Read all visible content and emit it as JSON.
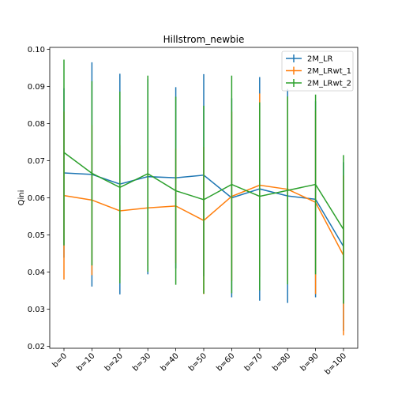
{
  "chart_data": {
    "type": "line",
    "title": "Hillstrom_newbie",
    "xlabel": "",
    "ylabel": "Qini",
    "categories": [
      "b=0",
      "b=10",
      "b=20",
      "b=30",
      "b=40",
      "b=50",
      "b=60",
      "b=70",
      "b=80",
      "b=90",
      "b=100"
    ],
    "ylim": [
      0.0195,
      0.1005
    ],
    "yticks": [
      0.02,
      0.03,
      0.04,
      0.05,
      0.06,
      0.07,
      0.08,
      0.09,
      0.1
    ],
    "ytick_labels": [
      "0.02",
      "0.03",
      "0.04",
      "0.05",
      "0.06",
      "0.07",
      "0.08",
      "0.09",
      "0.10"
    ],
    "grid": false,
    "legend_position": "top-right",
    "series": [
      {
        "name": "2M_LR",
        "color": "#1f77b4",
        "values": [
          0.0667,
          0.0663,
          0.0637,
          0.0657,
          0.0654,
          0.0661,
          0.06,
          0.0624,
          0.0605,
          0.0596,
          0.0469
        ],
        "errors": [
          0.0228,
          0.0302,
          0.0297,
          0.0263,
          0.0244,
          0.0272,
          0.0268,
          0.0301,
          0.0288,
          0.0264,
          0.0227
        ]
      },
      {
        "name": "2M_LRwt_1",
        "color": "#ff7f0e",
        "values": [
          0.0606,
          0.0594,
          0.0565,
          0.0573,
          0.0578,
          0.0539,
          0.0604,
          0.0634,
          0.0623,
          0.0588,
          0.0445
        ],
        "errors": [
          0.0226,
          0.0202,
          0.0177,
          0.0157,
          0.0154,
          0.0198,
          0.0228,
          0.0247,
          0.0247,
          0.0247,
          0.0215
        ]
      },
      {
        "name": "2M_LRwt_2",
        "color": "#2ca02c",
        "values": [
          0.0722,
          0.0666,
          0.0628,
          0.0665,
          0.0619,
          0.0595,
          0.0636,
          0.0604,
          0.062,
          0.0636,
          0.0515
        ],
        "errors": [
          0.025,
          0.0248,
          0.0258,
          0.0264,
          0.0253,
          0.0253,
          0.0293,
          0.0253,
          0.0253,
          0.0242,
          0.02
        ]
      }
    ]
  }
}
